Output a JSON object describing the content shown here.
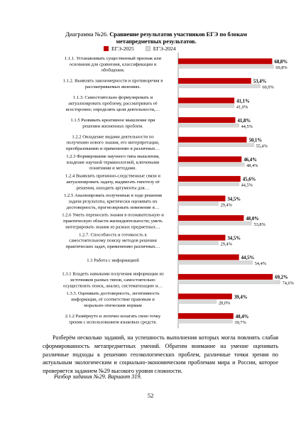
{
  "title_prefix": "Диаграмма №26.",
  "title_bold_1": "Сравнение результатов участников ЕГЭ  по блокам",
  "title_bold_2": "метапредметных результатов.",
  "legend": [
    {
      "label": "ЕГЭ-2025",
      "color": "#c00000"
    },
    {
      "label": "ЕГЭ-2024",
      "color": "#d9d9d9"
    }
  ],
  "chart_data": {
    "type": "bar",
    "orientation": "horizontal",
    "xlim": [
      0,
      80
    ],
    "categories": [
      [
        "1.1.1. Устанавливать существенный признак или",
        "основания для сравнения, классификации и",
        "обобщения."
      ],
      [
        "1.1.2. Выявлять закономерности и противоречия в",
        "рассматриваемых явлениях."
      ],
      [
        "1.1.3. Самостоятельно формулировать и",
        "актуализировать проблему, рассматривать её",
        "всесторонне; определять цели деятельности,…"
      ],
      [
        "1.1.5 Развивать креативное мышление при",
        "решении жизненных проблем."
      ],
      [
        "1.2.2 Овладение видами деятельности по",
        "получению нового знания, его интерпретации,",
        "преобразованию и применению в различных…"
      ],
      [
        "1.2.3 Формирование научного типа мышления,",
        "владение научной терминологией, ключевыми",
        "понятиями и методами."
      ],
      [
        "1.2.4 Выявлять причинно-следственные связи и",
        "актуализировать задачу, выдвигать гипотезу её",
        "решения, находить аргументы для…"
      ],
      [
        "1.2.5 Анализировать полученные в ходе решения",
        "задачи результаты, критически оценивать их",
        "достоверность, прогнозировать изменение в…"
      ],
      [
        "1.2.6 Уметь переносить знания в познавательную и",
        "практическую области жизнедеятельности; уметь",
        "интегрировать знания из разных предметных…"
      ],
      [
        "1.2.7. Способность и готовность к",
        "самостоятельному поиску методов решения",
        "практических задач, применению различных…"
      ],
      [
        "1.3 Работа с информацией"
      ],
      [
        "1.3.1 Владеть навыками получения информации из",
        "источников разных типов, самостоятельно",
        "осуществлять поиск, анализ, систематизацию и…"
      ],
      [
        "1.3.3. Оценивать достоверность, легитимность",
        "информации, её соответствие правовым и",
        "морально-этическим нормам"
      ],
      [
        "2.1.2 Развёрнуто и логично излагать свою точку",
        "зрения с использованием языковых средств."
      ]
    ],
    "series": [
      {
        "name": "ЕГЭ-2025",
        "color": "#c00000",
        "values": [
          68.8,
          53.4,
          41.1,
          41.8,
          50.1,
          46.4,
          45.6,
          34.5,
          48.0,
          34.5,
          44.5,
          69.2,
          39.4,
          40.4
        ],
        "labels": [
          "68,8%",
          "53,4%",
          "41,1%",
          "41,8%",
          "50,1%",
          "46,4%",
          "45,6%",
          "34,5%",
          "48,0%",
          "34,5%",
          "44,5%",
          "69,2%",
          "39,4%",
          "40,4%"
        ]
      },
      {
        "name": "ЕГЭ-2024",
        "color": "#d9d9d9",
        "values": [
          69.8,
          60.0,
          41.0,
          44.5,
          55.4,
          48.4,
          44.5,
          29.4,
          53.8,
          29.4,
          54.4,
          74.6,
          28.0,
          39.7
        ],
        "labels": [
          "69,8%",
          "60,0%",
          "41,0%",
          "44,5%",
          "55,4%",
          "48,4%",
          "44,5%",
          "29,4%",
          "53,8%",
          "29,4%",
          "54,4%",
          "74,6%",
          "28,0%",
          "39,7%"
        ]
      }
    ]
  },
  "paragraph": "Разберём несколько заданий, на успешность выполнения которых могла повлиять слабая сформированность метапредметных умений. Обратим внимание на умение оценивать различные подходы к решению геоэкологических проблем, различные точки зрения по актуальным экологическим и социально-экономическим проблемам мира и России, которое проверяется заданием №29 высокого уровня сложности.",
  "subheading": "Разбор задания №29. Вариант 319.",
  "page_number": "52"
}
